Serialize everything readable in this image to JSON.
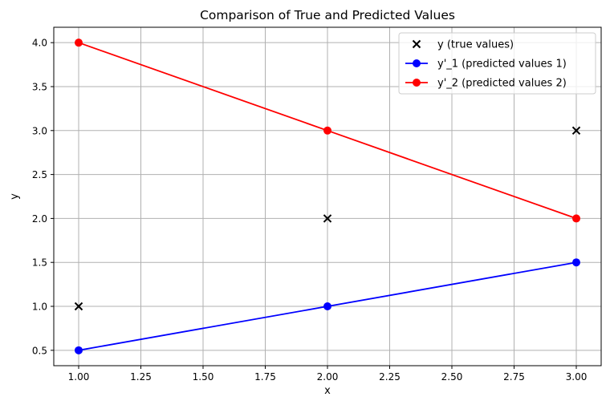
{
  "chart_data": {
    "type": "line",
    "title": "Comparison of True and Predicted Values",
    "xlabel": "x",
    "ylabel": "y",
    "xlim": [
      0.9,
      3.1
    ],
    "ylim": [
      0.325,
      4.175
    ],
    "xticks": [
      1.0,
      1.25,
      1.5,
      1.75,
      2.0,
      2.25,
      2.5,
      2.75,
      3.0
    ],
    "xtick_labels": [
      "1.00",
      "1.25",
      "1.50",
      "1.75",
      "2.00",
      "2.25",
      "2.50",
      "2.75",
      "3.00"
    ],
    "yticks": [
      0.5,
      1.0,
      1.5,
      2.0,
      2.5,
      3.0,
      3.5,
      4.0
    ],
    "ytick_labels": [
      "0.5",
      "1.0",
      "1.5",
      "2.0",
      "2.5",
      "3.0",
      "3.5",
      "4.0"
    ],
    "grid": true,
    "legend_position": "top-right",
    "series": [
      {
        "name": "y (true values)",
        "kind": "scatter",
        "marker": "x",
        "color": "#000000",
        "x": [
          1,
          2,
          3
        ],
        "y": [
          1,
          2,
          3
        ]
      },
      {
        "name": "y'_1 (predicted values 1)",
        "kind": "line",
        "marker": "o",
        "color": "#0000ff",
        "x": [
          1,
          2,
          3
        ],
        "y": [
          0.5,
          1.0,
          1.5
        ]
      },
      {
        "name": "y'_2 (predicted values 2)",
        "kind": "line",
        "marker": "o",
        "color": "#ff0000",
        "x": [
          1,
          2,
          3
        ],
        "y": [
          4.0,
          3.0,
          2.0
        ]
      }
    ]
  }
}
